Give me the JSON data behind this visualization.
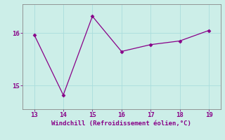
{
  "x": [
    13,
    14,
    15,
    16,
    17,
    18,
    19
  ],
  "y": [
    15.97,
    14.82,
    16.32,
    15.65,
    15.78,
    15.85,
    16.05
  ],
  "line_color": "#880088",
  "marker": "D",
  "marker_size": 2.5,
  "bg_color": "#cceee8",
  "xlabel": "Windchill (Refroidissement éolien,°C)",
  "xlabel_color": "#880088",
  "xlabel_fontsize": 6.5,
  "tick_color": "#880088",
  "tick_fontsize": 6.5,
  "grid_color": "#aadddd",
  "ylim": [
    14.55,
    16.55
  ],
  "xlim": [
    12.6,
    19.4
  ],
  "yticks": [
    15,
    16
  ],
  "xticks": [
    13,
    14,
    15,
    16,
    17,
    18,
    19
  ],
  "spine_color": "#888888",
  "line_width": 0.9
}
